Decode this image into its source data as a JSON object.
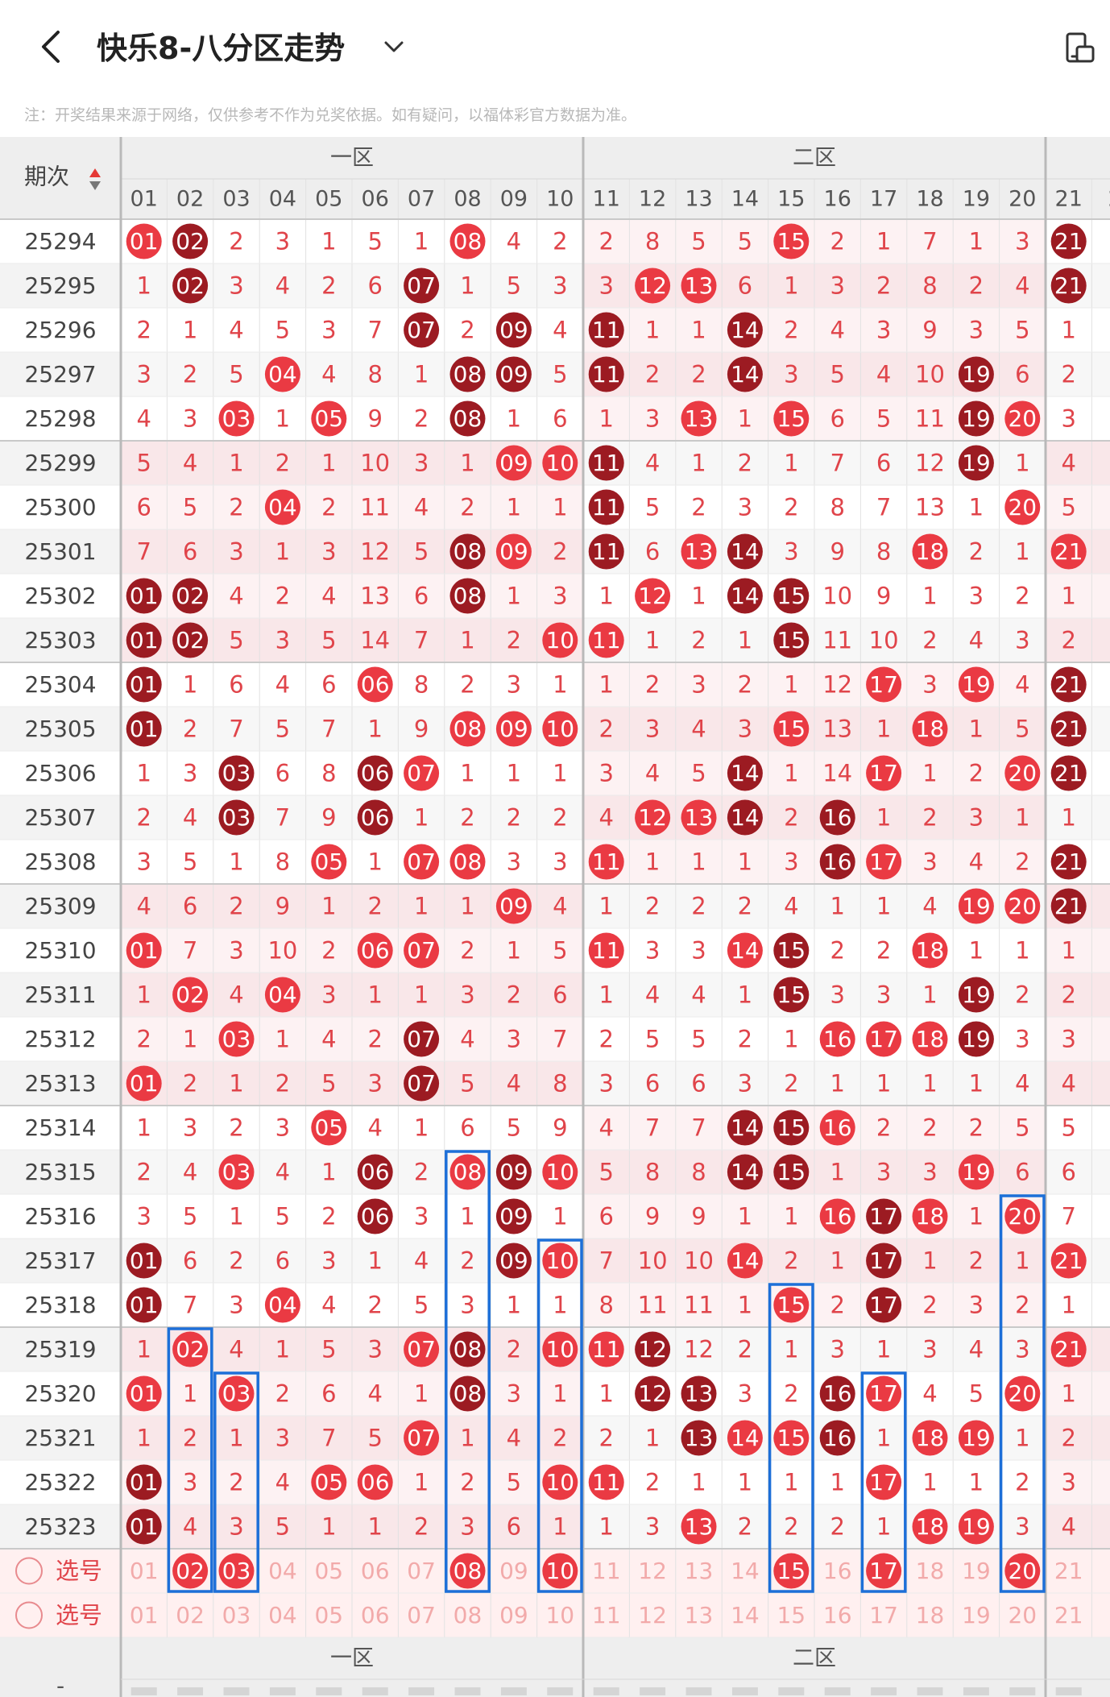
{
  "header": {
    "back_icon": "chevron-left-icon",
    "title": "快乐8-八分区走势",
    "dropdown_icon": "chevron-down-icon",
    "device_icon": "device-toggle-icon"
  },
  "notice": "注：开奖结果来源于网络，仅供参考不作为兑奖依据。如有疑问，以福体彩官方数据为准。",
  "table": {
    "period_header": "期次",
    "zones": [
      "一区",
      "二区"
    ],
    "columns": [
      "01",
      "02",
      "03",
      "04",
      "05",
      "06",
      "07",
      "08",
      "09",
      "10",
      "11",
      "12",
      "13",
      "14",
      "15",
      "16",
      "17",
      "18",
      "19",
      "20",
      "21"
    ],
    "partial_column_label": "2",
    "rows": [
      {
        "period": "25294",
        "cells": [
          "01",
          "02",
          "2",
          "3",
          "1",
          "5",
          "1",
          "08",
          "4",
          "2",
          "2",
          "8",
          "5",
          "5",
          "15",
          "2",
          "1",
          "7",
          "1",
          "3",
          "21"
        ]
      },
      {
        "period": "25295",
        "cells": [
          "1",
          "02",
          "3",
          "4",
          "2",
          "6",
          "07",
          "1",
          "5",
          "3",
          "3",
          "12",
          "13",
          "6",
          "1",
          "3",
          "2",
          "8",
          "2",
          "4",
          "21"
        ]
      },
      {
        "period": "25296",
        "cells": [
          "2",
          "1",
          "4",
          "5",
          "3",
          "7",
          "07",
          "2",
          "09",
          "4",
          "11",
          "1",
          "1",
          "14",
          "2",
          "4",
          "3",
          "9",
          "3",
          "5",
          "1"
        ]
      },
      {
        "period": "25297",
        "cells": [
          "3",
          "2",
          "5",
          "04",
          "4",
          "8",
          "1",
          "08",
          "09",
          "5",
          "11",
          "2",
          "2",
          "14",
          "3",
          "5",
          "4",
          "10",
          "19",
          "6",
          "2"
        ]
      },
      {
        "period": "25298",
        "cells": [
          "4",
          "3",
          "03",
          "1",
          "05",
          "9",
          "2",
          "08",
          "1",
          "6",
          "1",
          "3",
          "13",
          "1",
          "15",
          "6",
          "5",
          "11",
          "19",
          "20",
          "3"
        ]
      },
      {
        "period": "25299",
        "cells": [
          "5",
          "4",
          "1",
          "2",
          "1",
          "10",
          "3",
          "1",
          "09",
          "10",
          "11",
          "4",
          "1",
          "2",
          "1",
          "7",
          "6",
          "12",
          "19",
          "1",
          "4"
        ]
      },
      {
        "period": "25300",
        "cells": [
          "6",
          "5",
          "2",
          "04",
          "2",
          "11",
          "4",
          "2",
          "1",
          "1",
          "11",
          "5",
          "2",
          "3",
          "2",
          "8",
          "7",
          "13",
          "1",
          "20",
          "5"
        ]
      },
      {
        "period": "25301",
        "cells": [
          "7",
          "6",
          "3",
          "1",
          "3",
          "12",
          "5",
          "08",
          "09",
          "2",
          "11",
          "6",
          "13",
          "14",
          "3",
          "9",
          "8",
          "18",
          "2",
          "1",
          "21"
        ]
      },
      {
        "period": "25302",
        "cells": [
          "01",
          "02",
          "4",
          "2",
          "4",
          "13",
          "6",
          "08",
          "1",
          "3",
          "1",
          "12",
          "1",
          "14",
          "15",
          "10",
          "9",
          "1",
          "3",
          "2",
          "1"
        ]
      },
      {
        "period": "25303",
        "cells": [
          "01",
          "02",
          "5",
          "3",
          "5",
          "14",
          "7",
          "1",
          "2",
          "10",
          "11",
          "1",
          "2",
          "1",
          "15",
          "11",
          "10",
          "2",
          "4",
          "3",
          "2"
        ]
      },
      {
        "period": "25304",
        "cells": [
          "01",
          "1",
          "6",
          "4",
          "6",
          "06",
          "8",
          "2",
          "3",
          "1",
          "1",
          "2",
          "3",
          "2",
          "1",
          "12",
          "17",
          "3",
          "19",
          "4",
          "21"
        ]
      },
      {
        "period": "25305",
        "cells": [
          "01",
          "2",
          "7",
          "5",
          "7",
          "1",
          "9",
          "08",
          "09",
          "10",
          "2",
          "3",
          "4",
          "3",
          "15",
          "13",
          "1",
          "18",
          "1",
          "5",
          "21"
        ]
      },
      {
        "period": "25306",
        "cells": [
          "1",
          "3",
          "03",
          "6",
          "8",
          "06",
          "07",
          "1",
          "1",
          "1",
          "3",
          "4",
          "5",
          "14",
          "1",
          "14",
          "17",
          "1",
          "2",
          "20",
          "21"
        ]
      },
      {
        "period": "25307",
        "cells": [
          "2",
          "4",
          "03",
          "7",
          "9",
          "06",
          "1",
          "2",
          "2",
          "2",
          "4",
          "12",
          "13",
          "14",
          "2",
          "16",
          "1",
          "2",
          "3",
          "1",
          "1"
        ]
      },
      {
        "period": "25308",
        "cells": [
          "3",
          "5",
          "1",
          "8",
          "05",
          "1",
          "07",
          "08",
          "3",
          "3",
          "11",
          "1",
          "1",
          "1",
          "3",
          "16",
          "17",
          "3",
          "4",
          "2",
          "21"
        ]
      },
      {
        "period": "25309",
        "cells": [
          "4",
          "6",
          "2",
          "9",
          "1",
          "2",
          "1",
          "1",
          "09",
          "4",
          "1",
          "2",
          "2",
          "2",
          "4",
          "1",
          "1",
          "4",
          "19",
          "20",
          "21"
        ]
      },
      {
        "period": "25310",
        "cells": [
          "01",
          "7",
          "3",
          "10",
          "2",
          "06",
          "07",
          "2",
          "1",
          "5",
          "11",
          "3",
          "3",
          "14",
          "15",
          "2",
          "2",
          "18",
          "1",
          "1",
          "1"
        ]
      },
      {
        "period": "25311",
        "cells": [
          "1",
          "02",
          "4",
          "04",
          "3",
          "1",
          "1",
          "3",
          "2",
          "6",
          "1",
          "4",
          "4",
          "1",
          "15",
          "3",
          "3",
          "1",
          "19",
          "2",
          "2"
        ]
      },
      {
        "period": "25312",
        "cells": [
          "2",
          "1",
          "03",
          "1",
          "4",
          "2",
          "07",
          "4",
          "3",
          "7",
          "2",
          "5",
          "5",
          "2",
          "1",
          "16",
          "17",
          "18",
          "19",
          "3",
          "3"
        ]
      },
      {
        "period": "25313",
        "cells": [
          "01",
          "2",
          "1",
          "2",
          "5",
          "3",
          "07",
          "5",
          "4",
          "8",
          "3",
          "6",
          "6",
          "3",
          "2",
          "1",
          "1",
          "1",
          "1",
          "4",
          "4"
        ]
      },
      {
        "period": "25314",
        "cells": [
          "1",
          "3",
          "2",
          "3",
          "05",
          "4",
          "1",
          "6",
          "5",
          "9",
          "4",
          "7",
          "7",
          "14",
          "15",
          "16",
          "2",
          "2",
          "2",
          "5",
          "5"
        ]
      },
      {
        "period": "25315",
        "cells": [
          "2",
          "4",
          "03",
          "4",
          "1",
          "06",
          "2",
          "08",
          "09",
          "10",
          "5",
          "8",
          "8",
          "14",
          "15",
          "1",
          "3",
          "3",
          "19",
          "6",
          "6"
        ]
      },
      {
        "period": "25316",
        "cells": [
          "3",
          "5",
          "1",
          "5",
          "2",
          "06",
          "3",
          "1",
          "09",
          "1",
          "6",
          "9",
          "9",
          "1",
          "1",
          "16",
          "17",
          "18",
          "1",
          "20",
          "7"
        ]
      },
      {
        "period": "25317",
        "cells": [
          "01",
          "6",
          "2",
          "6",
          "3",
          "1",
          "4",
          "2",
          "09",
          "10",
          "7",
          "10",
          "10",
          "14",
          "2",
          "1",
          "17",
          "1",
          "2",
          "1",
          "21"
        ]
      },
      {
        "period": "25318",
        "cells": [
          "01",
          "7",
          "3",
          "04",
          "4",
          "2",
          "5",
          "3",
          "1",
          "1",
          "8",
          "11",
          "11",
          "1",
          "15",
          "2",
          "17",
          "2",
          "3",
          "2",
          "1"
        ]
      },
      {
        "period": "25319",
        "cells": [
          "1",
          "02",
          "4",
          "1",
          "5",
          "3",
          "07",
          "08",
          "2",
          "10",
          "11",
          "12",
          "12",
          "2",
          "1",
          "3",
          "1",
          "3",
          "4",
          "3",
          "21"
        ]
      },
      {
        "period": "25320",
        "cells": [
          "01",
          "1",
          "03",
          "2",
          "6",
          "4",
          "1",
          "08",
          "3",
          "1",
          "1",
          "12",
          "13",
          "3",
          "2",
          "16",
          "17",
          "4",
          "5",
          "20",
          "1"
        ]
      },
      {
        "period": "25321",
        "cells": [
          "1",
          "2",
          "1",
          "3",
          "7",
          "5",
          "07",
          "1",
          "4",
          "2",
          "2",
          "1",
          "13",
          "14",
          "15",
          "16",
          "1",
          "18",
          "19",
          "1",
          "2"
        ]
      },
      {
        "period": "25322",
        "cells": [
          "01",
          "3",
          "2",
          "4",
          "05",
          "06",
          "1",
          "2",
          "5",
          "10",
          "11",
          "2",
          "1",
          "1",
          "1",
          "1",
          "17",
          "1",
          "1",
          "2",
          "3"
        ]
      },
      {
        "period": "25323",
        "cells": [
          "01",
          "4",
          "3",
          "5",
          "1",
          "1",
          "2",
          "3",
          "6",
          "1",
          "1",
          "3",
          "13",
          "2",
          "2",
          "2",
          "1",
          "18",
          "19",
          "3",
          "4"
        ]
      }
    ],
    "pick_rows": [
      {
        "label": "选号",
        "numbers": [
          "01",
          "02",
          "03",
          "04",
          "05",
          "06",
          "07",
          "08",
          "09",
          "10",
          "11",
          "12",
          "13",
          "14",
          "15",
          "16",
          "17",
          "18",
          "19",
          "20",
          "21"
        ]
      },
      {
        "label": "选号",
        "numbers": [
          "01",
          "02",
          "03",
          "04",
          "05",
          "06",
          "07",
          "08",
          "09",
          "10",
          "11",
          "12",
          "13",
          "14",
          "15",
          "16",
          "17",
          "18",
          "19",
          "20",
          "21"
        ]
      }
    ],
    "pick_selected": [
      "02",
      "03",
      "08",
      "10",
      "15",
      "17",
      "20"
    ],
    "footer_period": "-",
    "colors": {
      "miss_text": "#e0444a",
      "hit_fill": "#ea3a43",
      "hit_dark_fill": "#9c1b22",
      "highlight_box": "#1d6fd8",
      "header_bg": "#eeeeee"
    }
  }
}
